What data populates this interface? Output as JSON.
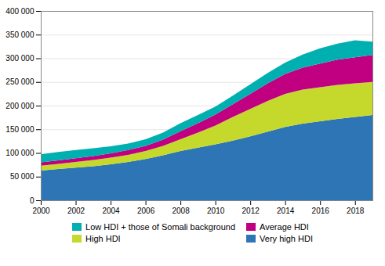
{
  "chart_data": {
    "type": "area",
    "stacked": true,
    "x": [
      2000,
      2001,
      2002,
      2003,
      2004,
      2005,
      2006,
      2007,
      2008,
      2009,
      2010,
      2011,
      2012,
      2013,
      2014,
      2015,
      2016,
      2017,
      2018,
      2019
    ],
    "series": [
      {
        "name": "Very high HDI",
        "color": "#2E75B6",
        "values": [
          63000,
          66000,
          69000,
          72000,
          76000,
          81000,
          87000,
          95000,
          104000,
          111000,
          118000,
          126000,
          135000,
          145000,
          155000,
          162000,
          167000,
          172000,
          176000,
          180000
        ]
      },
      {
        "name": "High HDI",
        "color": "#C5D92D",
        "values": [
          10000,
          11000,
          12000,
          13000,
          14000,
          15000,
          17000,
          20000,
          25000,
          32000,
          40000,
          50000,
          58000,
          65000,
          70000,
          72000,
          72000,
          72000,
          71000,
          70000
        ]
      },
      {
        "name": "Average HDI",
        "color": "#C00080",
        "values": [
          7000,
          7500,
          8000,
          8500,
          9000,
          10000,
          11000,
          13000,
          17000,
          20000,
          23000,
          27000,
          32000,
          37000,
          42000,
          46000,
          50000,
          53000,
          55000,
          57000
        ]
      },
      {
        "name": "Low HDI + those of Somali background",
        "color": "#00B0B0",
        "values": [
          17000,
          17500,
          17000,
          16500,
          15000,
          14000,
          14000,
          15000,
          17000,
          17000,
          17000,
          18000,
          20000,
          22000,
          24000,
          28000,
          32000,
          34000,
          36000,
          28000
        ]
      }
    ],
    "xlim": [
      2000,
      2019
    ],
    "xticks": [
      2000,
      2002,
      2004,
      2006,
      2008,
      2010,
      2012,
      2014,
      2016,
      2018
    ],
    "ylim": [
      0,
      400000
    ],
    "yticks": [
      0,
      {
        "value": 50000,
        "label": "50 000"
      },
      {
        "value": 100000,
        "label": "100 000"
      },
      {
        "value": 150000,
        "label": "150 000"
      },
      {
        "value": 200000,
        "label": "200 000"
      },
      {
        "value": 250000,
        "label": "250 000"
      },
      {
        "value": 300000,
        "label": "300 000"
      },
      {
        "value": 350000,
        "label": "350 000"
      },
      {
        "value": 400000,
        "label": "400 000"
      }
    ],
    "grid": true,
    "legend": "bottom"
  }
}
